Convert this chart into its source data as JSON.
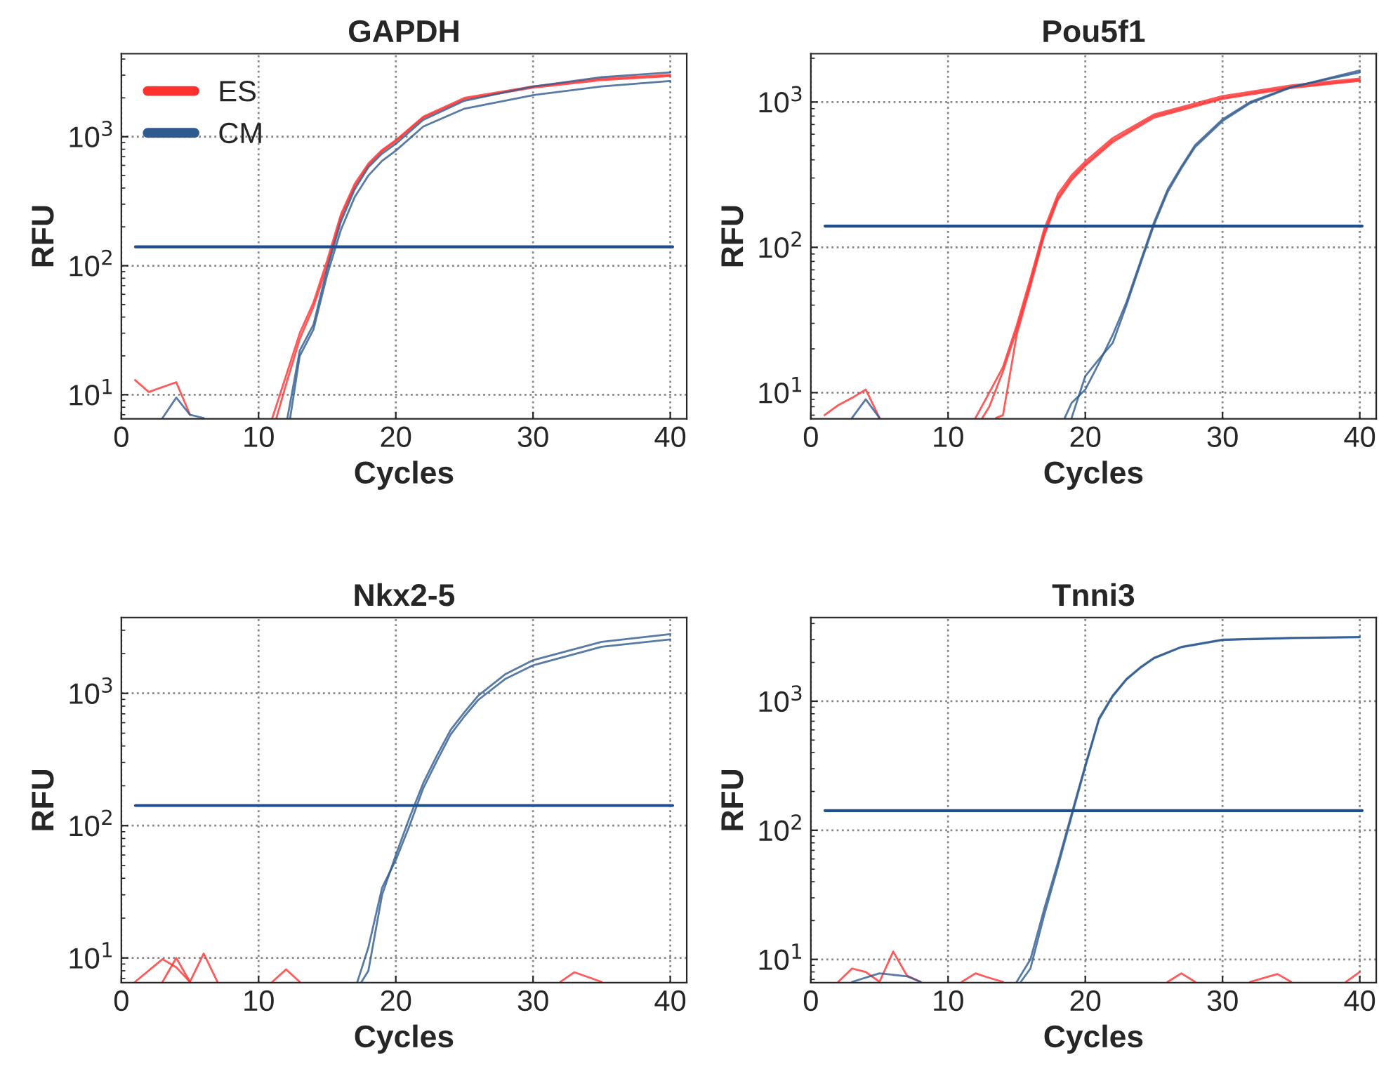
{
  "chart_data": [
    {
      "type": "line",
      "title": "GAPDH",
      "xlabel": "Cycles",
      "ylabel": "RFU",
      "log": "y",
      "xlim": [
        0,
        41.2
      ],
      "ylim": [
        6.5,
        4400
      ],
      "xticks": [
        0,
        10,
        20,
        30,
        40
      ],
      "yticks": [
        {
          "value": 10,
          "label": "10$^{1}$"
        },
        {
          "value": 100,
          "label": "10$^{2}$"
        },
        {
          "value": 1000,
          "label": "10$^{3}$"
        }
      ],
      "grid": true,
      "legend": "top left",
      "ref_lines": [
        {
          "axis": "y",
          "value": 140,
          "color": "#1f4e8c"
        }
      ],
      "series": [
        {
          "name": "ES",
          "color": "#ff3030",
          "x": [
            11,
            12,
            13,
            14,
            15,
            16,
            17,
            18,
            19,
            20,
            22,
            25,
            30,
            35,
            40
          ],
          "values": [
            6.6,
            14,
            30,
            52,
            110,
            250,
            430,
            620,
            790,
            940,
            1430,
            2000,
            2450,
            2820,
            3020
          ]
        },
        {
          "color": "#ff3030",
          "x": [
            11.3,
            12,
            13,
            14,
            15,
            16,
            17,
            18,
            19,
            20,
            22,
            25,
            30,
            35,
            40
          ],
          "values": [
            6.6,
            12,
            27,
            48,
            100,
            235,
            410,
            600,
            770,
            920,
            1400,
            1950,
            2400,
            2750,
            2950
          ]
        },
        {
          "name": "CM",
          "color": "#2e5a8e",
          "x": [
            12.1,
            13,
            14,
            15,
            16,
            17,
            18,
            19,
            20,
            22,
            25,
            30,
            35,
            40
          ],
          "values": [
            6.6,
            22,
            35,
            95,
            220,
            390,
            580,
            740,
            880,
            1350,
            1900,
            2450,
            2900,
            3150
          ]
        },
        {
          "color": "#2e5a8e",
          "x": [
            12.3,
            13,
            14,
            15,
            16,
            17,
            18,
            19,
            20,
            22,
            25,
            30,
            35,
            40
          ],
          "values": [
            6.6,
            20,
            32,
            85,
            190,
            340,
            500,
            650,
            780,
            1200,
            1650,
            2100,
            2450,
            2700
          ]
        },
        {
          "color": "#ff3030",
          "x": [
            1,
            2,
            4,
            5
          ],
          "values": [
            13,
            10.5,
            12.5,
            7
          ]
        },
        {
          "color": "#2e5a8e",
          "x": [
            3,
            4,
            5,
            6
          ],
          "values": [
            6.6,
            9.5,
            7,
            6.6
          ]
        }
      ]
    },
    {
      "type": "line",
      "title": "Pou5f1",
      "xlabel": "Cycles",
      "ylabel": "RFU",
      "log": "y",
      "xlim": [
        0,
        41.2
      ],
      "ylim": [
        6.6,
        2150
      ],
      "xticks": [
        0,
        10,
        20,
        30,
        40
      ],
      "yticks": [
        {
          "value": 10,
          "label": "10$^{1}$"
        },
        {
          "value": 100,
          "label": "10$^{2}$"
        },
        {
          "value": 1000,
          "label": "10$^{3}$"
        }
      ],
      "grid": true,
      "ref_lines": [
        {
          "axis": "y",
          "value": 140,
          "color": "#1f4e8c"
        }
      ],
      "series": [
        {
          "color": "#ff3030",
          "x": [
            12,
            13,
            14,
            15,
            16,
            17,
            18,
            19,
            20,
            22,
            25,
            30,
            35,
            40
          ],
          "values": [
            6.7,
            10,
            15,
            29,
            61,
            133,
            232,
            313,
            390,
            565,
            820,
            1100,
            1300,
            1450
          ]
        },
        {
          "color": "#ff3030",
          "x": [
            12.5,
            13,
            14,
            15,
            16,
            17,
            18,
            19,
            20,
            22,
            25,
            30,
            35,
            40
          ],
          "values": [
            6.7,
            8,
            14,
            27,
            57,
            125,
            220,
            300,
            375,
            545,
            800,
            1070,
            1270,
            1420
          ]
        },
        {
          "color": "#ff3030",
          "x": [
            13.5,
            14,
            15,
            16,
            17,
            18,
            19,
            20,
            22,
            25,
            30,
            35,
            40
          ],
          "values": [
            6.7,
            7,
            25,
            54,
            120,
            212,
            290,
            365,
            530,
            780,
            1050,
            1250,
            1400
          ]
        },
        {
          "color": "#2e5a8e",
          "x": [
            18.5,
            19,
            20,
            21,
            22,
            23,
            24,
            25,
            26,
            27,
            28,
            30,
            32,
            35,
            40
          ],
          "values": [
            6.7,
            8.5,
            10.5,
            16,
            25,
            42,
            79,
            148,
            250,
            360,
            505,
            760,
            1000,
            1270,
            1600
          ]
        },
        {
          "color": "#2e5a8e",
          "x": [
            19,
            20,
            21,
            22,
            23,
            24,
            25,
            26,
            27,
            28,
            30,
            32,
            35,
            40
          ],
          "values": [
            6.7,
            13,
            17,
            22,
            40,
            76,
            142,
            240,
            350,
            490,
            740,
            980,
            1260,
            1650
          ]
        },
        {
          "color": "#ff3030",
          "x": [
            1,
            2,
            3,
            4,
            5
          ],
          "values": [
            7,
            8.2,
            9.2,
            10.5,
            6.7
          ]
        },
        {
          "color": "#2e5a8e",
          "x": [
            3,
            4,
            5
          ],
          "values": [
            6.7,
            9,
            6.7
          ]
        }
      ]
    },
    {
      "type": "line",
      "title": "Nkx2-5",
      "xlabel": "Cycles",
      "ylabel": "RFU",
      "log": "y",
      "xlim": [
        0,
        41.2
      ],
      "ylim": [
        6.5,
        3740
      ],
      "xticks": [
        0,
        10,
        20,
        30,
        40
      ],
      "yticks": [
        {
          "value": 10,
          "label": "10$^{1}$"
        },
        {
          "value": 100,
          "label": "10$^{2}$"
        },
        {
          "value": 1000,
          "label": "10$^{3}$"
        }
      ],
      "grid": true,
      "ref_lines": [
        {
          "axis": "y",
          "value": 142,
          "color": "#1f4e8c"
        }
      ],
      "series": [
        {
          "color": "#2e5a8e",
          "x": [
            17.2,
            18,
            19,
            20,
            21,
            22,
            23,
            24,
            25,
            26,
            28,
            30,
            35,
            40
          ],
          "values": [
            6.6,
            12,
            34,
            55,
            100,
            192,
            310,
            490,
            670,
            890,
            1290,
            1630,
            2250,
            2560
          ]
        },
        {
          "color": "#2e5a8e",
          "x": [
            17.5,
            18,
            19,
            20,
            21,
            22,
            23,
            24,
            25,
            26,
            28,
            30,
            35,
            40
          ],
          "values": [
            6.6,
            8,
            30,
            60,
            115,
            210,
            340,
            530,
            720,
            960,
            1400,
            1780,
            2450,
            2800
          ]
        },
        {
          "color": "#ff3030",
          "x": [
            1,
            3,
            4,
            5,
            6,
            7
          ],
          "values": [
            6.6,
            9.8,
            8.5,
            6.6,
            10.8,
            6.6
          ]
        },
        {
          "color": "#ff3030",
          "x": [
            3,
            4,
            5
          ],
          "values": [
            6.6,
            10,
            6.6
          ]
        },
        {
          "color": "#ff3030",
          "x": [
            11,
            12,
            13
          ],
          "values": [
            6.6,
            8.2,
            6.6
          ]
        },
        {
          "color": "#ff3030",
          "x": [
            32,
            33,
            35
          ],
          "values": [
            6.6,
            7.8,
            6.6
          ]
        }
      ]
    },
    {
      "type": "line",
      "title": "Tnni3",
      "xlabel": "Cycles",
      "ylabel": "RFU",
      "log": "y",
      "xlim": [
        0,
        41.2
      ],
      "ylim": [
        6.6,
        4450
      ],
      "xticks": [
        0,
        10,
        20,
        30,
        40
      ],
      "yticks": [
        {
          "value": 10,
          "label": "10$^{1}$"
        },
        {
          "value": 100,
          "label": "10$^{2}$"
        },
        {
          "value": 1000,
          "label": "10$^{3}$"
        }
      ],
      "grid": true,
      "ref_lines": [
        {
          "axis": "y",
          "value": 142,
          "color": "#1f4e8c"
        }
      ],
      "series": [
        {
          "color": "#2e5a8e",
          "x": [
            15,
            16,
            17,
            18,
            19,
            20,
            21,
            22,
            23,
            24,
            25,
            27,
            30,
            35,
            40
          ],
          "values": [
            6.7,
            10,
            24.5,
            56,
            134,
            320,
            740,
            1110,
            1490,
            1830,
            2170,
            2640,
            3000,
            3100,
            3150
          ]
        },
        {
          "color": "#2e5a8e",
          "x": [
            15.3,
            16,
            17,
            18,
            19,
            20,
            21,
            22,
            23,
            24,
            25,
            27,
            30,
            35,
            40
          ],
          "values": [
            6.7,
            8.5,
            22,
            52,
            128,
            310,
            720,
            1090,
            1470,
            1810,
            2150,
            2620,
            2980,
            3080,
            3130
          ]
        },
        {
          "color": "#ff3030",
          "x": [
            2,
            3,
            4,
            5,
            6,
            7,
            8
          ],
          "values": [
            6.7,
            8.5,
            8,
            6.7,
            11.5,
            7.5,
            6.7
          ]
        },
        {
          "color": "#ff3030",
          "x": [
            11,
            12,
            13,
            14
          ],
          "values": [
            6.7,
            7.8,
            7.2,
            6.7
          ]
        },
        {
          "color": "#ff3030",
          "x": [
            26,
            27,
            28
          ],
          "values": [
            6.7,
            7.8,
            6.7
          ]
        },
        {
          "color": "#ff3030",
          "x": [
            32,
            34,
            35
          ],
          "values": [
            6.7,
            7.7,
            6.7
          ]
        },
        {
          "color": "#ff3030",
          "x": [
            39,
            40
          ],
          "values": [
            6.7,
            8
          ]
        },
        {
          "color": "#2e5a8e",
          "x": [
            3,
            5,
            7,
            8
          ],
          "values": [
            6.7,
            7.8,
            7.4,
            6.7
          ]
        }
      ]
    }
  ]
}
